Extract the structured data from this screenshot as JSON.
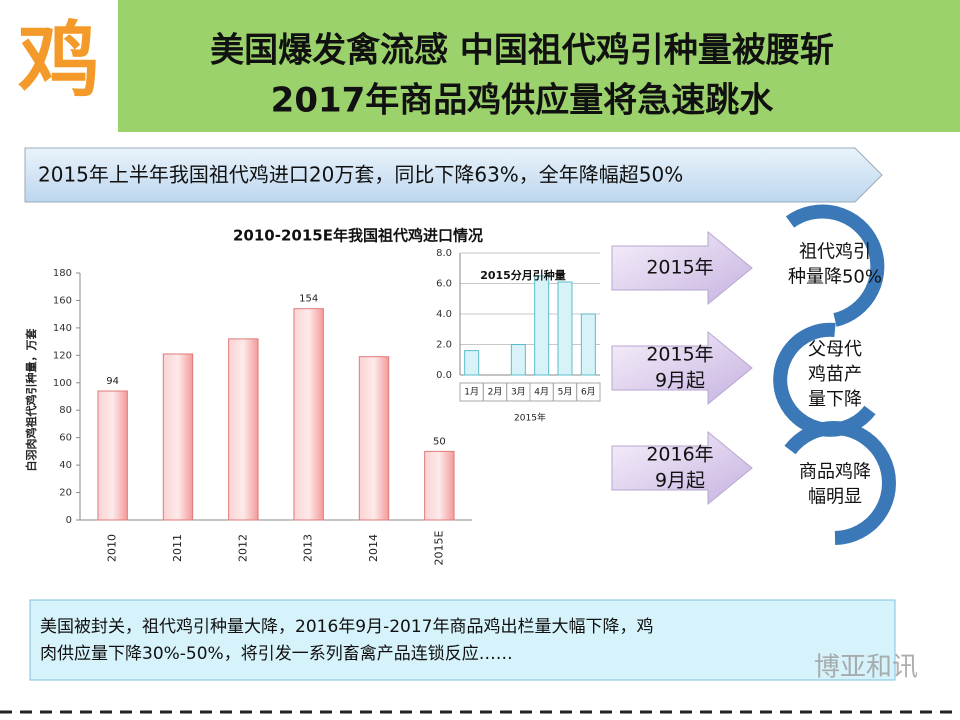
{
  "header": {
    "logo": "鸡",
    "title_lines": [
      "美国爆发禽流感 中国祖代鸡引种量被腰斩",
      "2017年商品鸡供应量将急速跳水"
    ]
  },
  "banner": "2015年上半年我国祖代鸡进口20万套，同比下降63%，全年降幅超50%",
  "chart_data": [
    {
      "type": "bar",
      "title": "2010-2015E年我国祖代鸡进口情况",
      "y_label": "白羽肉鸡祖代鸡引种量，万套",
      "categories": [
        "2010",
        "2011",
        "2012",
        "2013",
        "2014",
        "2015E"
      ],
      "values": [
        94,
        121,
        132,
        154,
        119,
        50
      ],
      "value_labels": [
        "94",
        null,
        null,
        "154",
        null,
        "50"
      ],
      "color": "#f7b3b3",
      "ylim": [
        0,
        180
      ],
      "yticks": [
        0,
        20,
        40,
        60,
        80,
        100,
        120,
        140,
        160,
        180
      ],
      "grid": false
    },
    {
      "type": "bar",
      "title": "2015分月引种量",
      "x_label": "2015年",
      "categories": [
        "1月",
        "2月",
        "3月",
        "4月",
        "5月",
        "6月"
      ],
      "values": [
        1.6,
        0,
        2.0,
        6.5,
        6.1,
        4.0
      ],
      "color": "#d8f3f7",
      "ylim": [
        0,
        8
      ],
      "yticks": [
        {
          "value": 0,
          "label": "0.0"
        },
        {
          "value": 2,
          "label": "2.0"
        },
        {
          "value": 4,
          "label": "4.0"
        },
        {
          "value": 6,
          "label": "6.0"
        },
        {
          "value": 8,
          "label": "8.0"
        }
      ],
      "grid": true
    }
  ],
  "flow": [
    {
      "arrow": [
        "2015年"
      ],
      "result": [
        "祖代鸡引",
        "种量降50%"
      ]
    },
    {
      "arrow": [
        "2015年",
        "9月起"
      ],
      "result": [
        "父母代",
        "鸡苗产",
        "量下降"
      ]
    },
    {
      "arrow": [
        "2016年",
        "9月起"
      ],
      "result": [
        "商品鸡降",
        "幅明显"
      ]
    }
  ],
  "note_lines": [
    "美国被封关，祖代鸡引种量大降，2016年9月-2017年商品鸡出栏量大幅下降，鸡",
    "肉供应量下降30%-50%，将引发一系列畜禽产品连锁反应……"
  ],
  "watermark": "博亚和讯"
}
